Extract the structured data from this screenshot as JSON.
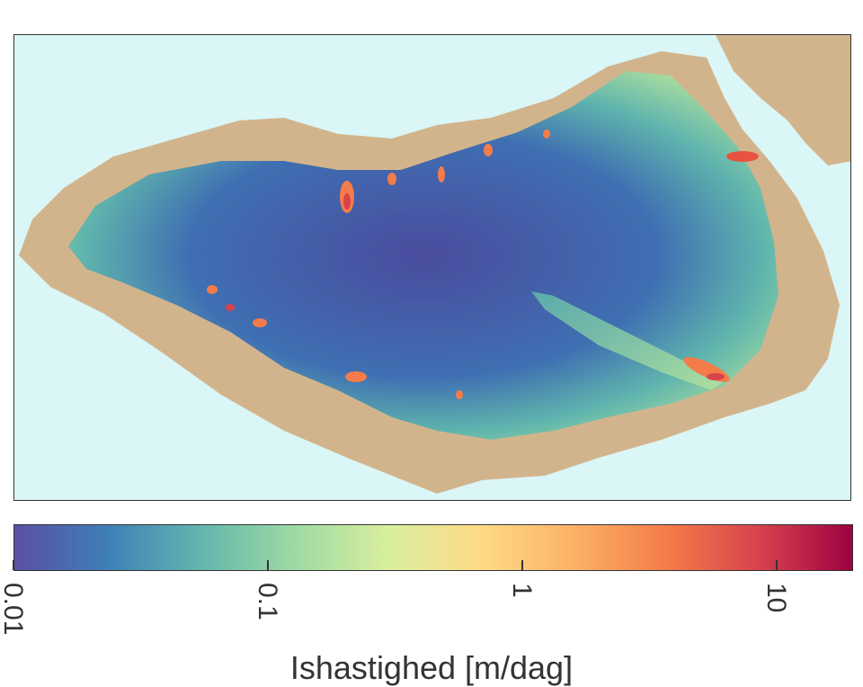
{
  "map": {
    "ocean_color": "#daf6f6",
    "land_color": "#d2b48c",
    "ice_interior_color": "#4c4fa0"
  },
  "colorbar": {
    "title": "Ishastighed [m/dag]",
    "scale": "log",
    "range": [
      0.01,
      20
    ],
    "colormap": "Spectral_r",
    "stops": [
      "#5a4fa3",
      "#3f7fb8",
      "#62b6ad",
      "#9dd9a4",
      "#d8ef9e",
      "#fedb87",
      "#fbb266",
      "#f47c4a",
      "#d7424c",
      "#9e0142"
    ],
    "ticks": [
      {
        "value": 0.01,
        "label": "0.01"
      },
      {
        "value": 0.1,
        "label": "0.1"
      },
      {
        "value": 1,
        "label": "1"
      },
      {
        "value": 10,
        "label": "10"
      }
    ]
  }
}
